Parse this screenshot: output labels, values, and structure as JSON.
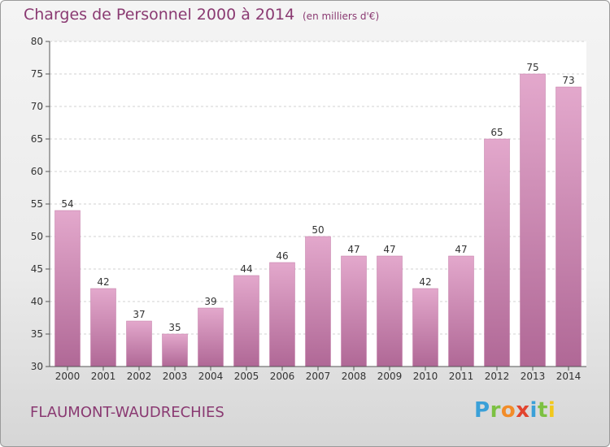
{
  "title": "Charges de Personnel 2000 à 2014",
  "subtitle": "(en milliers d'€)",
  "commune": "FLAUMONT-WAUDRECHIES",
  "logo": {
    "letters": [
      {
        "ch": "P",
        "color": "#3aa0d8"
      },
      {
        "ch": "r",
        "color": "#7cc142"
      },
      {
        "ch": "o",
        "color": "#f28c28"
      },
      {
        "ch": "x",
        "color": "#e2442f"
      },
      {
        "ch": "i",
        "color": "#3aa0d8"
      },
      {
        "ch": "t",
        "color": "#7cc142"
      },
      {
        "ch": "i",
        "color": "#f2c81c"
      }
    ]
  },
  "chart_data": {
    "type": "bar",
    "title": "Charges de Personnel 2000 à 2014",
    "categories": [
      "2000",
      "2001",
      "2002",
      "2003",
      "2004",
      "2005",
      "2006",
      "2007",
      "2008",
      "2009",
      "2010",
      "2011",
      "2012",
      "2013",
      "2014"
    ],
    "values": [
      54,
      42,
      37,
      35,
      39,
      44,
      46,
      50,
      47,
      47,
      42,
      47,
      65,
      75,
      73
    ],
    "ylim": [
      30,
      80
    ],
    "yticks": [
      30,
      35,
      40,
      45,
      50,
      55,
      60,
      65,
      70,
      75,
      80
    ],
    "grid": true,
    "bar_color": "#d98ab5"
  }
}
